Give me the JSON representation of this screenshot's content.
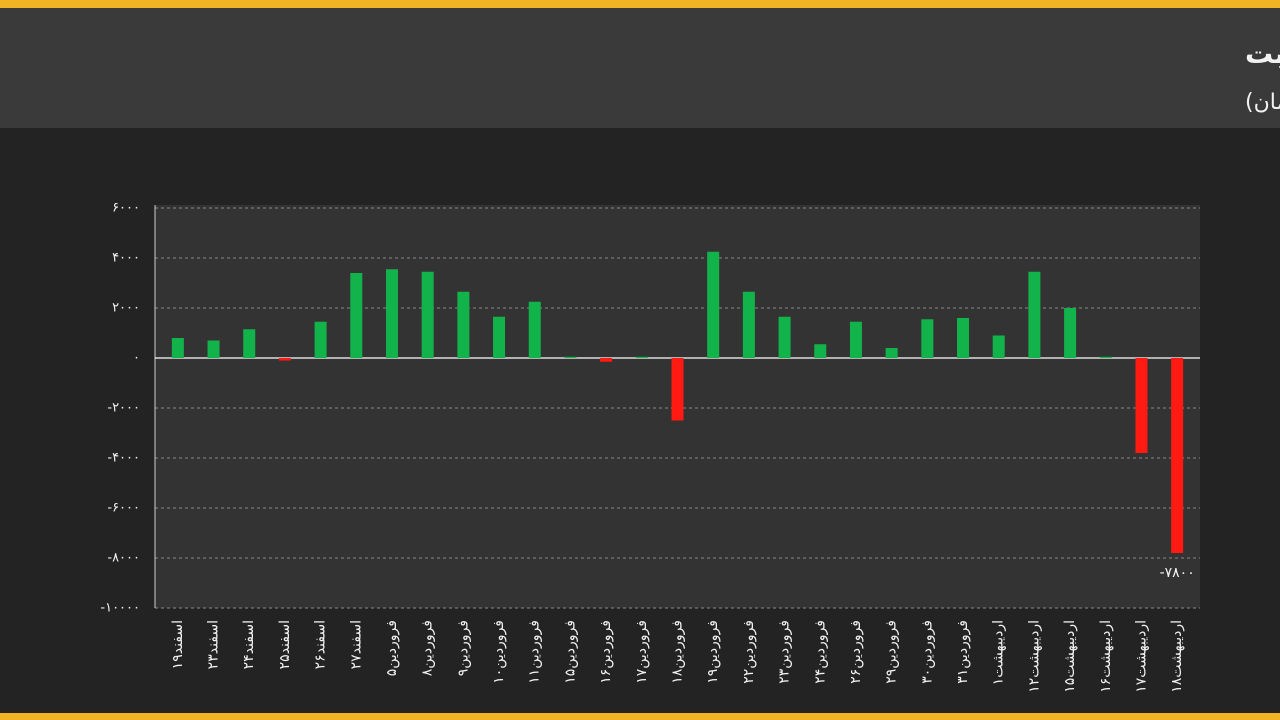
{
  "chart_data": {
    "type": "bar",
    "title": "ورود پول به صندوق های درآمد ثابت",
    "subtitle": "(میلیاردتومان)",
    "categories": [
      "۱۹اسفند",
      "۲۳اسفند",
      "۲۴اسفند",
      "۲۵اسفند",
      "۲۶اسفند",
      "۲۷اسفند",
      "۵فروردین",
      "۸فروردین",
      "۹فروردین",
      "۱۰فروردین",
      "۱۱فروردین",
      "۱۵فروردین",
      "۱۶فروردین",
      "۱۷فروردین",
      "۱۸فروردین",
      "۱۹فروردین",
      "۲۲فروردین",
      "۲۳فروردین",
      "۲۴فروردین",
      "۲۶فروردین",
      "۲۹فروردین",
      "۳۰فروردین",
      "۳۱فروردین",
      "۱اردیبهشت",
      "۱۲اردیبهشت",
      "۱۵اردیبهشت",
      "۱۶اردیبهشت",
      "۱۷اردیبهشت",
      "۱۸اردیبهشت"
    ],
    "values": [
      800,
      700,
      1150,
      -100,
      1450,
      3400,
      3550,
      3450,
      2650,
      1650,
      2250,
      50,
      -150,
      50,
      -2500,
      4250,
      2650,
      1650,
      550,
      1450,
      400,
      1550,
      1600,
      900,
      3450,
      2000,
      50,
      -3800,
      -7800
    ],
    "value_labels": [
      null,
      null,
      null,
      null,
      null,
      null,
      null,
      null,
      null,
      null,
      null,
      null,
      null,
      null,
      null,
      null,
      null,
      null,
      null,
      null,
      null,
      null,
      null,
      null,
      null,
      null,
      null,
      null,
      "-۷۸۰۰"
    ],
    "positive_color": "#13b34b",
    "negative_color": "#ff1a12",
    "ylim": [
      -10000,
      6000
    ],
    "yticks": [
      {
        "value": 6000,
        "label": "۶۰۰۰"
      },
      {
        "value": 4000,
        "label": "۴۰۰۰"
      },
      {
        "value": 2000,
        "label": "۲۰۰۰"
      },
      {
        "value": 0,
        "label": "۰"
      },
      {
        "value": -2000,
        "label": "-۲۰۰۰"
      },
      {
        "value": -4000,
        "label": "-۴۰۰۰"
      },
      {
        "value": -6000,
        "label": "-۶۰۰۰"
      },
      {
        "value": -8000,
        "label": "-۸۰۰۰"
      },
      {
        "value": -10000,
        "label": "-۱۰۰۰۰"
      }
    ],
    "grid": true
  }
}
